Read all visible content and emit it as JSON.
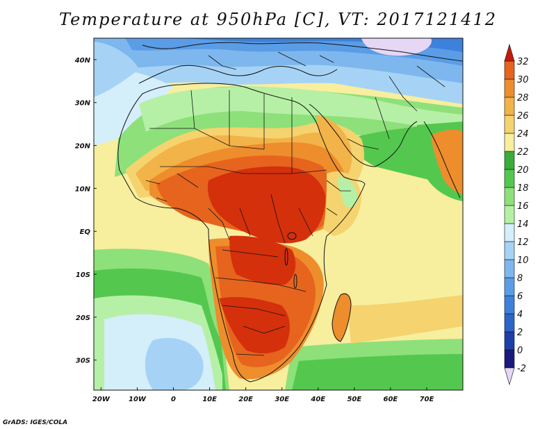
{
  "title": "Temperature at 950hPa [C], VT: 2017121412",
  "credit": "GrADS: IGES/COLA",
  "map": {
    "lon_range": [
      -22,
      80
    ],
    "lat_range": [
      -37,
      45
    ],
    "x_ticks": [
      {
        "lon": -20,
        "label": "20W"
      },
      {
        "lon": -10,
        "label": "10W"
      },
      {
        "lon": 0,
        "label": "0"
      },
      {
        "lon": 10,
        "label": "10E"
      },
      {
        "lon": 20,
        "label": "20E"
      },
      {
        "lon": 30,
        "label": "30E"
      },
      {
        "lon": 40,
        "label": "40E"
      },
      {
        "lon": 50,
        "label": "50E"
      },
      {
        "lon": 60,
        "label": "60E"
      },
      {
        "lon": 70,
        "label": "70E"
      }
    ],
    "y_ticks": [
      {
        "lat": 40,
        "label": "40N"
      },
      {
        "lat": 30,
        "label": "30N"
      },
      {
        "lat": 20,
        "label": "20N"
      },
      {
        "lat": 10,
        "label": "10N"
      },
      {
        "lat": 0,
        "label": "EQ"
      },
      {
        "lat": -10,
        "label": "10S"
      },
      {
        "lat": -20,
        "label": "20S"
      },
      {
        "lat": -30,
        "label": "30S"
      }
    ]
  },
  "colorbar": {
    "levels": [
      "-2",
      "0",
      "2",
      "4",
      "6",
      "8",
      "10",
      "12",
      "14",
      "16",
      "18",
      "20",
      "22",
      "24",
      "26",
      "28",
      "30",
      "32"
    ],
    "colors": [
      "#e6d7f5",
      "#1a1a7a",
      "#1c3fa8",
      "#2c64c8",
      "#3c82dc",
      "#5a9de6",
      "#7eb7ee",
      "#a6d3f5",
      "#d4eefa",
      "#b6f0a6",
      "#8ee07a",
      "#54c84e",
      "#3aad3a",
      "#f7ee9e",
      "#f5d36e",
      "#f2b348",
      "#ee8d2c",
      "#e6641e",
      "#d4300c",
      "#c41a0a"
    ]
  },
  "regions": [
    {
      "name": "arctic-mid",
      "color": "#2c64c8"
    },
    {
      "name": "northern-sea",
      "color": "#5a9de6"
    },
    {
      "name": "mediterranean",
      "color": "#a6d3f5"
    },
    {
      "name": "north-africa-green",
      "color": "#8ee07a"
    },
    {
      "name": "sahara-warm",
      "color": "#f2b348"
    },
    {
      "name": "sahel-hot",
      "color": "#ee8d2c"
    },
    {
      "name": "central-africa-hot",
      "color": "#d4300c"
    },
    {
      "name": "southern-africa-hot",
      "color": "#d4300c"
    },
    {
      "name": "gulf-guinea",
      "color": "#f7ee9e"
    },
    {
      "name": "south-atlantic-green",
      "color": "#54c84e"
    },
    {
      "name": "indian-ocean",
      "color": "#f7ee9e"
    },
    {
      "name": "madagascar",
      "color": "#ee8d2c"
    },
    {
      "name": "india",
      "color": "#ee8d2c"
    },
    {
      "name": "arabia",
      "color": "#f5d36e"
    }
  ]
}
